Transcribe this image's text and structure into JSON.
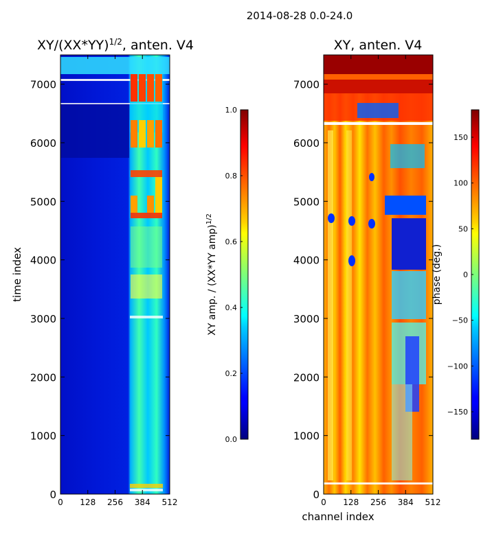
{
  "suptitle": "2014-08-28 0.0-24.0",
  "chart_data": [
    {
      "type": "heatmap",
      "title": "XY/(XX*YY)",
      "title_superscript": "1/2",
      "title_suffix": ", anten. V4",
      "xlabel": "",
      "ylabel": "time index",
      "xlim": [
        0,
        512
      ],
      "ylim": [
        0,
        7500
      ],
      "xticks": [
        0,
        128,
        256,
        384,
        512
      ],
      "yticks": [
        0,
        1000,
        2000,
        3000,
        4000,
        5000,
        6000,
        7000
      ],
      "colormap": "jet",
      "colorbar": {
        "label": "XY amp. / (XX*YY amp)",
        "label_superscript": "1/2",
        "range": [
          0.0,
          1.0
        ],
        "ticks": [
          "0.0",
          "0.2",
          "0.4",
          "0.6",
          "0.8",
          "1.0"
        ]
      }
    },
    {
      "type": "heatmap",
      "title": "XY, anten. V4",
      "xlabel": "channel index",
      "ylabel": "",
      "xlim": [
        0,
        512
      ],
      "ylim": [
        0,
        7500
      ],
      "xticks": [
        0,
        128,
        256,
        384,
        512
      ],
      "yticks": [
        0,
        1000,
        2000,
        3000,
        4000,
        5000,
        6000,
        7000
      ],
      "colormap": "jet",
      "colorbar": {
        "label": "phase (deg.)",
        "range": [
          -180,
          180
        ],
        "ticks": [
          "−150",
          "−100",
          "−50",
          "0",
          "50",
          "100",
          "150"
        ]
      }
    }
  ]
}
